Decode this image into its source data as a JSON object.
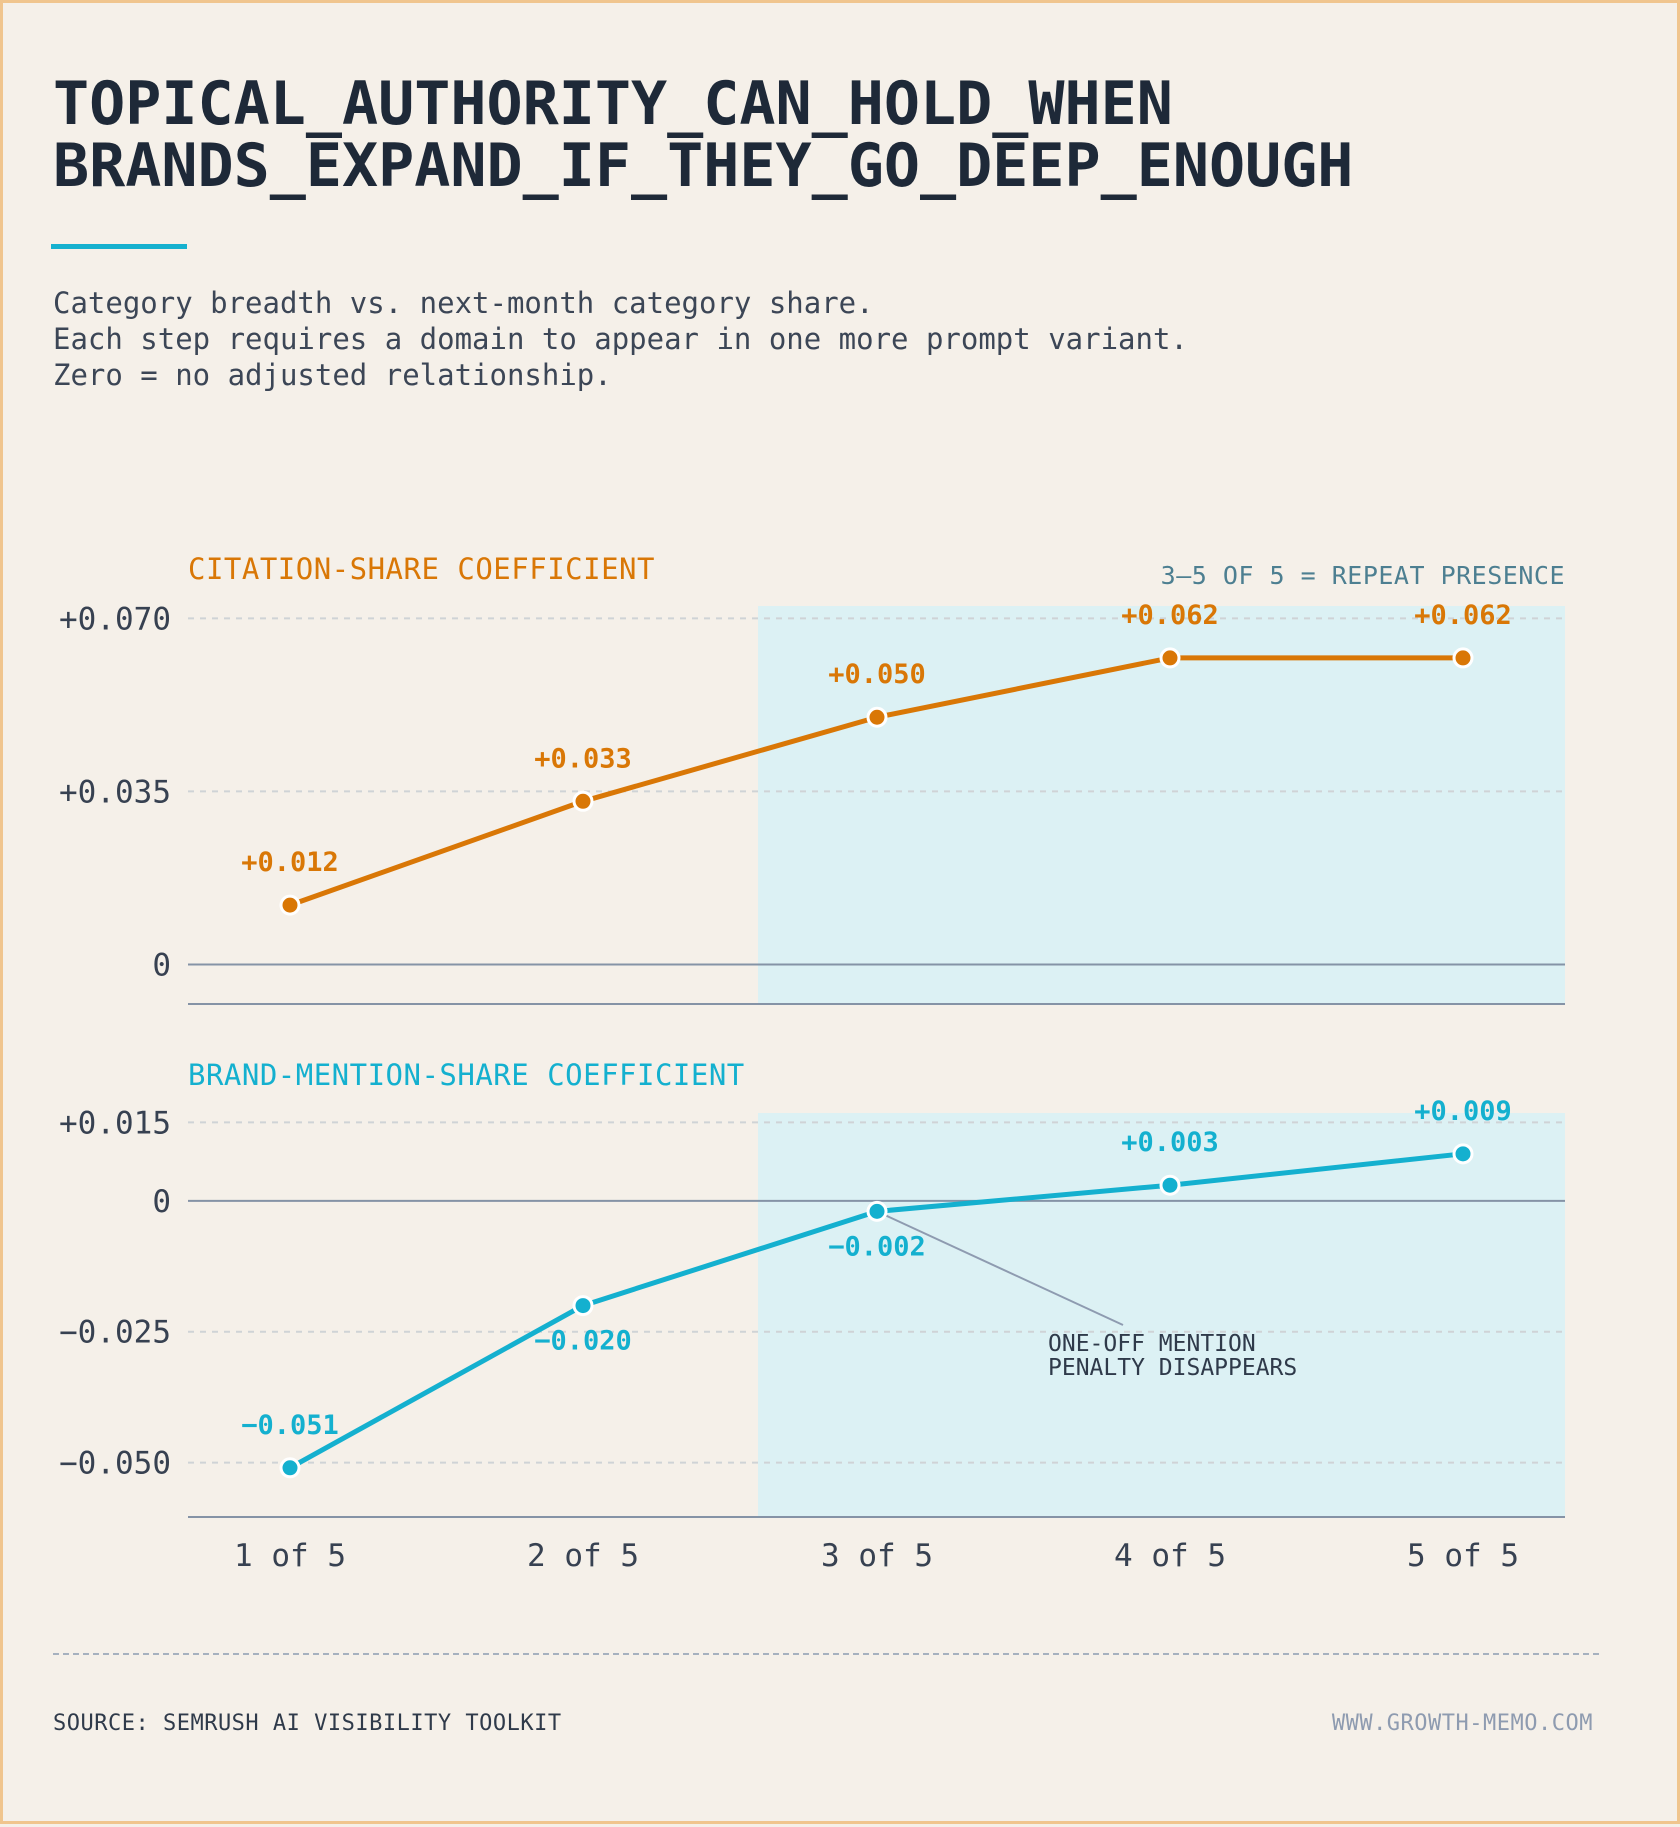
{
  "title_lines": [
    "TOPICAL_AUTHORITY_CAN_HOLD_WHEN",
    "BRANDS_EXPAND_IF_THEY_GO_DEEP_ENOUGH"
  ],
  "subtitle_lines": [
    "Category breadth vs. next-month category share.",
    "Each step requires a domain to appear in one more prompt variant.",
    "Zero = no adjusted relationship."
  ],
  "colors": {
    "background": "#f5f0e9",
    "border": "#f0c58e",
    "title": "#1e2938",
    "accent_rule": "#16b1cf",
    "citation": "#d97706",
    "brand": "#14b0cf",
    "highlight_band": "#dcf1f4",
    "highlight_label": "#4d7f91",
    "axis_text": "#374151",
    "grid": "#cfd3d6",
    "zero_line": "#8593a6"
  },
  "chart_data": [
    {
      "type": "line",
      "title": "CITATION-SHARE COEFFICIENT",
      "categories": [
        "1 of 5",
        "2 of 5",
        "3 of 5",
        "4 of 5",
        "5 of 5"
      ],
      "series": [
        {
          "values": [
            0.012,
            0.033,
            0.05,
            0.062,
            0.062
          ]
        }
      ],
      "data_labels": [
        "+0.012",
        "+0.033",
        "+0.050",
        "+0.062",
        "+0.062"
      ],
      "yticks": [
        0.07,
        0.035,
        0
      ],
      "ytick_labels": [
        "+0.070",
        "+0.035",
        "0"
      ],
      "ylim": [
        -0.008,
        0.0725
      ],
      "grid": true,
      "highlight": {
        "from_category": "3 of 5",
        "to_category": "5 of 5",
        "label": "3–5 OF 5 = REPEAT PRESENCE"
      },
      "color": "#d97706"
    },
    {
      "type": "line",
      "title": "BRAND-MENTION-SHARE COEFFICIENT",
      "categories": [
        "1 of 5",
        "2 of 5",
        "3 of 5",
        "4 of 5",
        "5 of 5"
      ],
      "series": [
        {
          "values": [
            -0.051,
            -0.02,
            -0.002,
            0.003,
            0.009
          ]
        }
      ],
      "data_labels": [
        "−0.051",
        "−0.020",
        "−0.002",
        "+0.003",
        "+0.009"
      ],
      "yticks": [
        0.015,
        0,
        -0.025,
        -0.05
      ],
      "ytick_labels": [
        "+0.015",
        "0",
        "−0.025",
        "−0.050"
      ],
      "ylim": [
        -0.0604,
        0.0168
      ],
      "grid": true,
      "highlight": {
        "from_category": "3 of 5",
        "to_category": "5 of 5"
      },
      "annotation": {
        "point_index": 2,
        "lines": [
          "ONE-OFF MENTION",
          "PENALTY DISAPPEARS"
        ]
      },
      "color": "#14b0cf"
    }
  ],
  "footer": {
    "source": "SOURCE: SEMRUSH AI VISIBILITY TOOLKIT",
    "site": "WWW.GROWTH-MEMO.COM"
  }
}
